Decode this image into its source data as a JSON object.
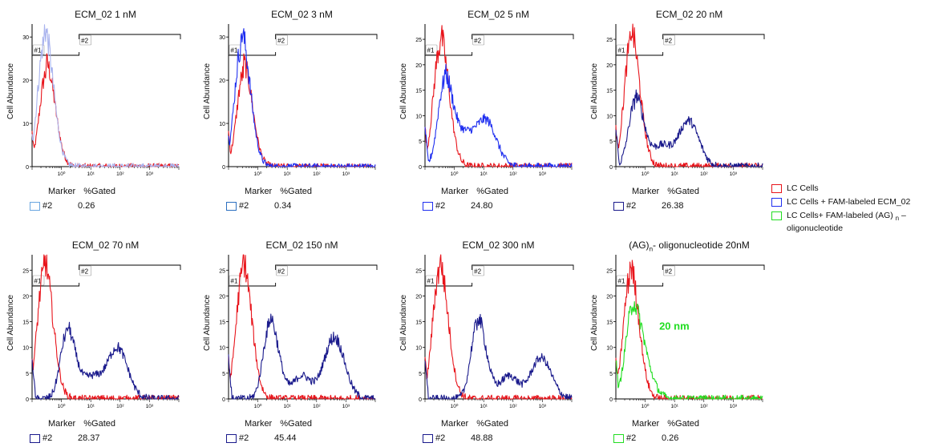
{
  "colors": {
    "red": "#e8141b",
    "blue": "#1f2ff0",
    "navy": "#1a1a8c",
    "lightblue": "#aab4ee",
    "green": "#22dd22",
    "annotation": "#22dd22"
  },
  "common": {
    "ylabel": "Cell Abundance",
    "marker_header": "Marker",
    "gated_header": "%Gated",
    "gate1": "#1",
    "gate2": "#2"
  },
  "legend": {
    "items": [
      {
        "label": "LC Cells",
        "color": "#e8141b"
      },
      {
        "label": "LC Cells + FAM-labeled  ECM_02",
        "color": "#1f2ff0"
      },
      {
        "label": "LC Cells+ FAM-labeled (AG) ",
        "sub": "n",
        "label_end": " –",
        "label2": "oligonucleotide",
        "color": "#22dd22"
      }
    ]
  },
  "chart_data": [
    {
      "type": "line",
      "title": "ECM_02 1 nM",
      "ylabel": "Cell Abundance",
      "x_scale": "log",
      "xlim": [
        0.1,
        10000
      ],
      "ylim": [
        0,
        33
      ],
      "y_ticks": [
        0,
        10,
        20,
        30
      ],
      "x_tick_labels": [
        "10⁰",
        "10¹",
        "10²",
        "10³"
      ],
      "series": [
        {
          "color": "#e8141b",
          "peak_x": 0.3,
          "peak_y": 24,
          "shape": "single"
        },
        {
          "color": "#aab4ee",
          "peak_x": 0.26,
          "peak_y": 32,
          "shape": "single"
        }
      ],
      "marker": {
        "id": "#2",
        "gated": "0.26",
        "box_color": "#6aa6e0"
      }
    },
    {
      "type": "line",
      "title": "ECM_02 3 nM",
      "ylabel": "Cell Abundance",
      "x_scale": "log",
      "xlim": [
        0.1,
        10000
      ],
      "ylim": [
        0,
        33
      ],
      "y_ticks": [
        0,
        10,
        20,
        30
      ],
      "x_tick_labels": [
        "10⁰",
        "10¹",
        "10²",
        "10³"
      ],
      "series": [
        {
          "color": "#e8141b",
          "peak_x": 0.32,
          "peak_y": 24,
          "shape": "single"
        },
        {
          "color": "#1f2ff0",
          "peak_x": 0.27,
          "peak_y": 31,
          "shape": "single"
        }
      ],
      "marker": {
        "id": "#2",
        "gated": "0.34",
        "box_color": "#2c6fc0"
      }
    },
    {
      "type": "line",
      "title": "ECM_02 5 nM",
      "ylabel": "Cell Abundance",
      "x_scale": "log",
      "xlim": [
        0.1,
        10000
      ],
      "ylim": [
        0,
        28
      ],
      "y_ticks": [
        0,
        5,
        10,
        15,
        20,
        25
      ],
      "x_tick_labels": [
        "10⁰",
        "10¹",
        "10²",
        "10³"
      ],
      "series": [
        {
          "color": "#e8141b",
          "peak_x": 0.32,
          "peak_y": 26,
          "shape": "single"
        },
        {
          "color": "#1f2ff0",
          "peak_x": 0.45,
          "peak_y": 18,
          "shape": "bimodal",
          "peak2_x": 12,
          "peak2_y": 9
        }
      ],
      "marker": {
        "id": "#2",
        "gated": "24.80",
        "box_color": "#1f2ff0"
      }
    },
    {
      "type": "line",
      "title": "ECM_02 20 nM",
      "ylabel": "Cell Abundance",
      "x_scale": "log",
      "xlim": [
        0.1,
        10000
      ],
      "ylim": [
        0,
        28
      ],
      "y_ticks": [
        0,
        5,
        10,
        15,
        20,
        25
      ],
      "x_tick_labels": [
        "10⁰",
        "10¹",
        "10²",
        "10³"
      ],
      "series": [
        {
          "color": "#e8141b",
          "peak_x": 0.32,
          "peak_y": 27,
          "shape": "single"
        },
        {
          "color": "#1a1a8c",
          "peak_x": 0.45,
          "peak_y": 14,
          "shape": "bimodal",
          "peak2_x": 30,
          "peak2_y": 9
        }
      ],
      "marker": {
        "id": "#2",
        "gated": "26.38",
        "box_color": "#1a1a8c"
      }
    },
    {
      "type": "line",
      "title": "ECM_02 70 nM",
      "ylabel": "Cell Abundance",
      "x_scale": "log",
      "xlim": [
        0.1,
        10000
      ],
      "ylim": [
        0,
        28
      ],
      "y_ticks": [
        0,
        5,
        10,
        15,
        20,
        25
      ],
      "x_tick_labels": [
        "10⁰",
        "10¹",
        "10²",
        "10³"
      ],
      "series": [
        {
          "color": "#e8141b",
          "peak_x": 0.25,
          "peak_y": 27,
          "shape": "single"
        },
        {
          "color": "#1a1a8c",
          "peak_x": 1.5,
          "peak_y": 14,
          "shape": "bimodal",
          "peak2_x": 80,
          "peak2_y": 10
        }
      ],
      "marker": {
        "id": "#2",
        "gated": "28.37",
        "box_color": "#1a1a8c"
      }
    },
    {
      "type": "line",
      "title": "ECM_02 150 nM",
      "ylabel": "Cell Abundance",
      "x_scale": "log",
      "xlim": [
        0.1,
        10000
      ],
      "ylim": [
        0,
        28
      ],
      "y_ticks": [
        0,
        5,
        10,
        15,
        20,
        25
      ],
      "x_tick_labels": [
        "10⁰",
        "10¹",
        "10²",
        "10³"
      ],
      "series": [
        {
          "color": "#e8141b",
          "peak_x": 0.3,
          "peak_y": 27,
          "shape": "single"
        },
        {
          "color": "#1a1a8c",
          "peak_x": 2.5,
          "peak_y": 16,
          "shape": "bimodal",
          "peak2_x": 400,
          "peak2_y": 12
        }
      ],
      "marker": {
        "id": "#2",
        "gated": "45.44",
        "box_color": "#1a1a8c"
      }
    },
    {
      "type": "line",
      "title": "ECM_02 300 nM",
      "ylabel": "Cell Abundance",
      "x_scale": "log",
      "xlim": [
        0.1,
        10000
      ],
      "ylim": [
        0,
        28
      ],
      "y_ticks": [
        0,
        5,
        10,
        15,
        20,
        25
      ],
      "x_tick_labels": [
        "10⁰",
        "10¹",
        "10²",
        "10³"
      ],
      "series": [
        {
          "color": "#e8141b",
          "peak_x": 0.3,
          "peak_y": 27,
          "shape": "single"
        },
        {
          "color": "#1a1a8c",
          "peak_x": 6,
          "peak_y": 16,
          "shape": "bimodal",
          "peak2_x": 900,
          "peak2_y": 8
        }
      ],
      "marker": {
        "id": "#2",
        "gated": "48.88",
        "box_color": "#1a1a8c"
      }
    },
    {
      "type": "line",
      "title": "(AG)",
      "title_sub": "n",
      "title_end": "- oligonucleotide 20nM",
      "ylabel": "Cell Abundance",
      "x_scale": "log",
      "xlim": [
        0.1,
        10000
      ],
      "ylim": [
        0,
        28
      ],
      "y_ticks": [
        0,
        5,
        10,
        15,
        20,
        25
      ],
      "x_tick_labels": [
        "10⁰",
        "10¹",
        "10²",
        "10³"
      ],
      "annotation": "20 nm",
      "series": [
        {
          "color": "#e8141b",
          "peak_x": 0.3,
          "peak_y": 26,
          "shape": "single"
        },
        {
          "color": "#22dd22",
          "peak_x": 0.35,
          "peak_y": 19,
          "shape": "wide"
        }
      ],
      "marker": {
        "id": "#2",
        "gated": "0.26",
        "box_color": "#22dd22"
      }
    }
  ]
}
